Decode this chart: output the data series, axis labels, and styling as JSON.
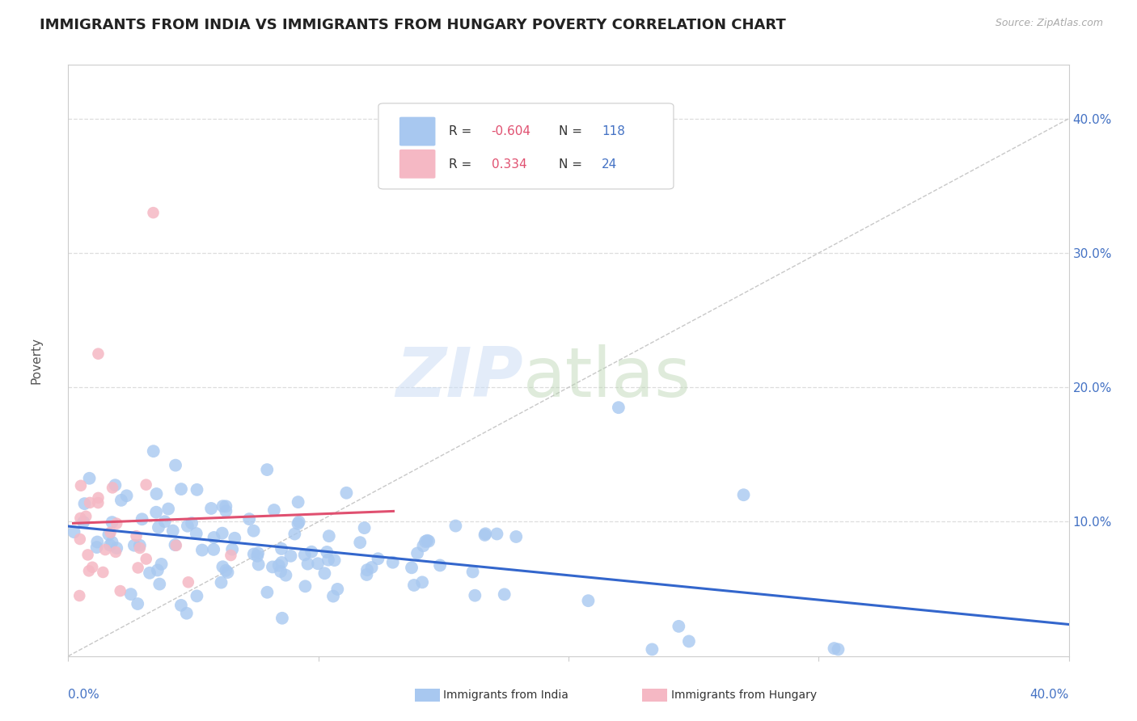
{
  "title": "IMMIGRANTS FROM INDIA VS IMMIGRANTS FROM HUNGARY POVERTY CORRELATION CHART",
  "source": "Source: ZipAtlas.com",
  "ylabel": "Poverty",
  "yticks": [
    "10.0%",
    "20.0%",
    "30.0%",
    "40.0%"
  ],
  "ytick_vals": [
    0.1,
    0.2,
    0.3,
    0.4
  ],
  "xlim": [
    0.0,
    0.4
  ],
  "ylim": [
    0.0,
    0.44
  ],
  "india_color": "#a8c8f0",
  "india_line_color": "#3366cc",
  "hungary_color": "#f5b8c4",
  "hungary_line_color": "#e05070",
  "diagonal_color": "#c8c8c8",
  "R_india": -0.604,
  "N_india": 118,
  "R_hungary": 0.334,
  "N_hungary": 24,
  "background_color": "#ffffff",
  "grid_color": "#dddddd",
  "title_color": "#222222",
  "axis_label_color": "#4472c4",
  "legend_R_color": "#e05070",
  "legend_N_color": "#4472c4"
}
